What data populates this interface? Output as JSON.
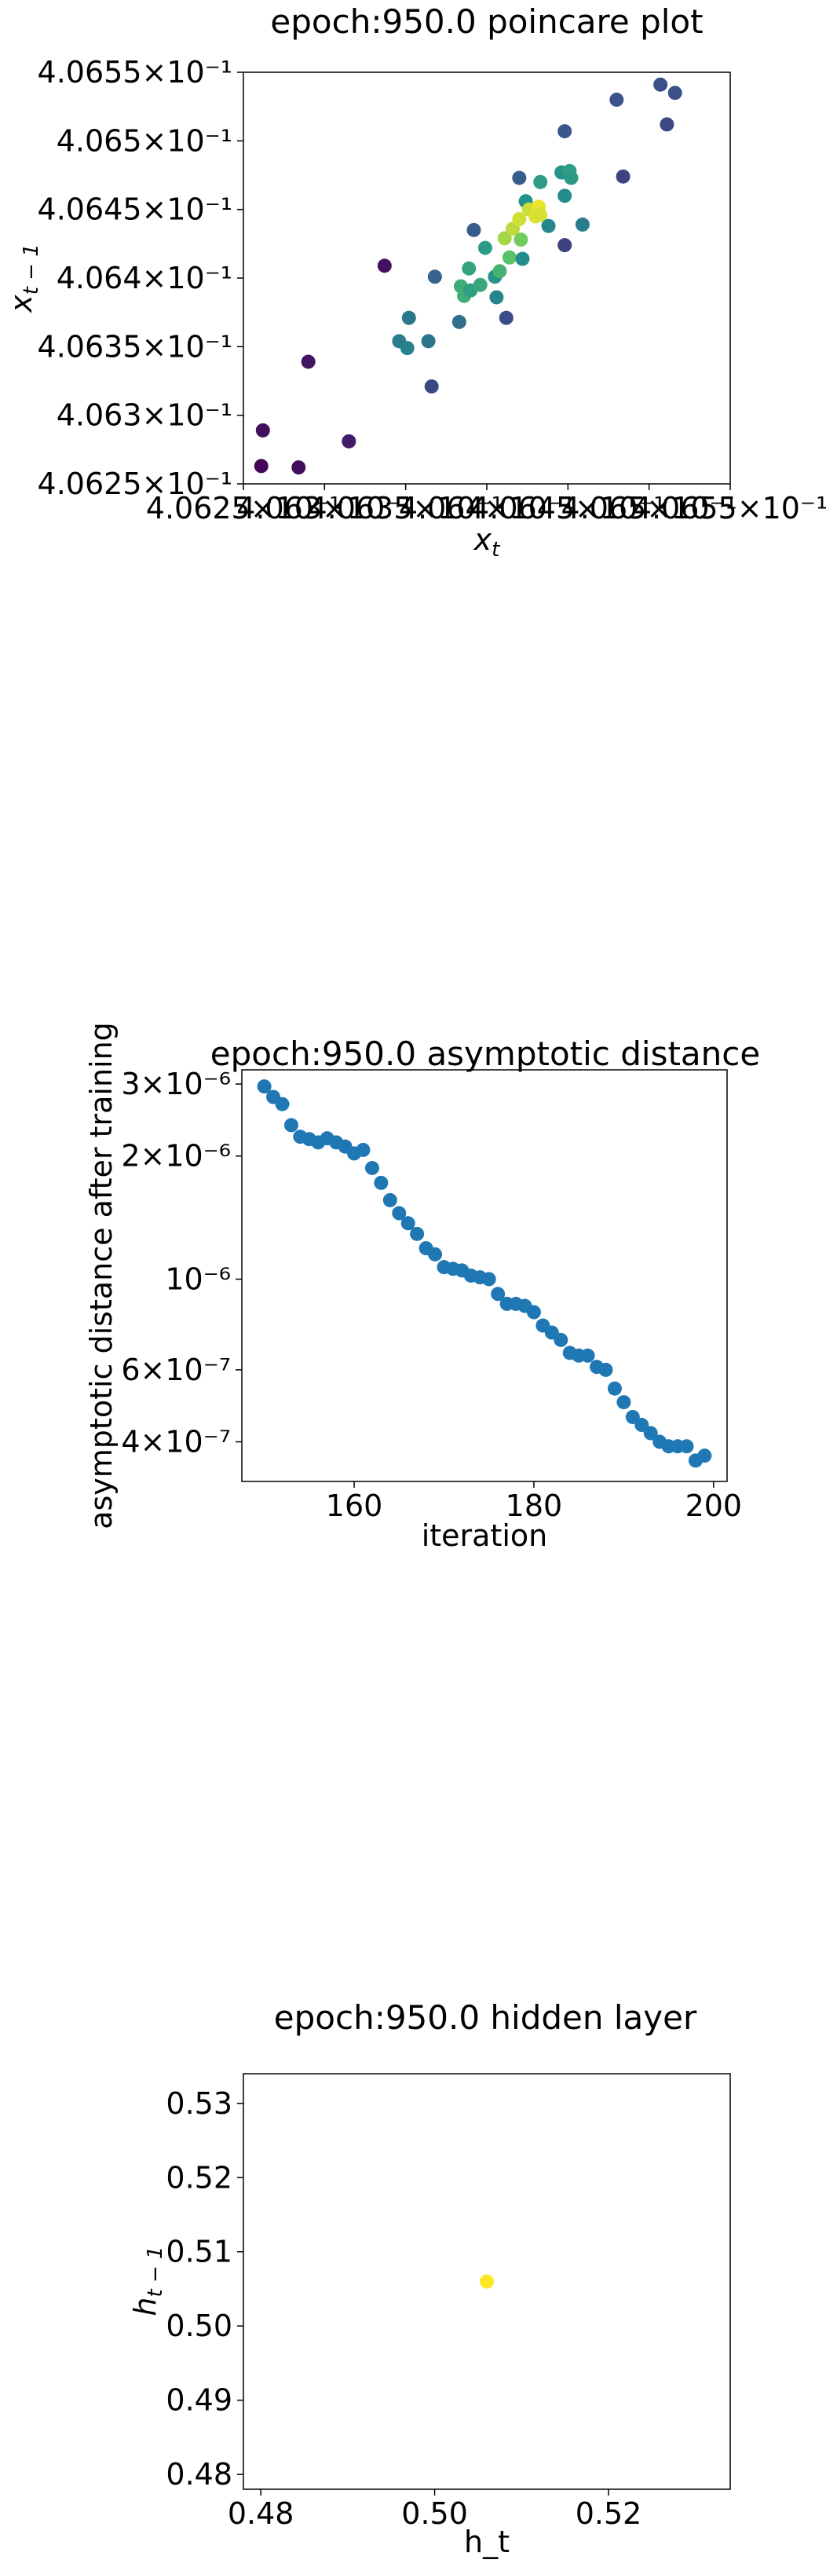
{
  "chart_data": [
    {
      "type": "scatter",
      "title": "epoch:950.0 poincare plot",
      "xlabel": "x_t",
      "ylabel": "x_{t-1}",
      "xlim": [
        0.40625,
        0.40655
      ],
      "ylim": [
        0.40625,
        0.40655
      ],
      "x_tick_labels": [
        "4.0625×10⁻¹",
        "4.063×10⁻¹",
        "4.0635×10⁻¹",
        "4.064×10⁻¹",
        "4.0645×10⁻¹",
        "4.065×10⁻¹",
        "4.0655×10⁻¹"
      ],
      "y_tick_labels": [
        "4.0625×10⁻¹",
        "4.063×10⁻¹",
        "4.0635×10⁻¹",
        "4.064×10⁻¹",
        "4.0645×10⁻¹",
        "4.065×10⁻¹",
        "4.0655×10⁻¹"
      ],
      "x_ticks": [
        0.40625,
        0.4063,
        0.40635,
        0.4064,
        0.40645,
        0.4065,
        0.40655
      ],
      "y_ticks": [
        0.40625,
        0.4063,
        0.40635,
        0.4064,
        0.40645,
        0.4065,
        0.40655
      ],
      "colormap": "viridis",
      "points": [
        {
          "x": 0.406261,
          "y": 0.406263,
          "c": 0.02
        },
        {
          "x": 0.406262,
          "y": 0.406289,
          "c": 0.04
        },
        {
          "x": 0.406284,
          "y": 0.406262,
          "c": 0.03
        },
        {
          "x": 0.40629,
          "y": 0.406339,
          "c": 0.06
        },
        {
          "x": 0.406315,
          "y": 0.406281,
          "c": 0.08
        },
        {
          "x": 0.406337,
          "y": 0.406409,
          "c": 0.05
        },
        {
          "x": 0.406346,
          "y": 0.406354,
          "c": 0.42
        },
        {
          "x": 0.406351,
          "y": 0.406349,
          "c": 0.44
        },
        {
          "x": 0.406352,
          "y": 0.406371,
          "c": 0.4
        },
        {
          "x": 0.406364,
          "y": 0.406354,
          "c": 0.39
        },
        {
          "x": 0.406366,
          "y": 0.406321,
          "c": 0.22
        },
        {
          "x": 0.406368,
          "y": 0.406401,
          "c": 0.32
        },
        {
          "x": 0.406383,
          "y": 0.406368,
          "c": 0.36
        },
        {
          "x": 0.406384,
          "y": 0.406394,
          "c": 0.62
        },
        {
          "x": 0.406386,
          "y": 0.406387,
          "c": 0.63
        },
        {
          "x": 0.406389,
          "y": 0.406407,
          "c": 0.58
        },
        {
          "x": 0.40639,
          "y": 0.406391,
          "c": 0.56
        },
        {
          "x": 0.406392,
          "y": 0.406435,
          "c": 0.29
        },
        {
          "x": 0.406396,
          "y": 0.406395,
          "c": 0.6
        },
        {
          "x": 0.406399,
          "y": 0.406422,
          "c": 0.55
        },
        {
          "x": 0.406405,
          "y": 0.406401,
          "c": 0.52
        },
        {
          "x": 0.406406,
          "y": 0.406386,
          "c": 0.45
        },
        {
          "x": 0.406408,
          "y": 0.406405,
          "c": 0.65
        },
        {
          "x": 0.406411,
          "y": 0.406429,
          "c": 0.86
        },
        {
          "x": 0.406412,
          "y": 0.406371,
          "c": 0.23
        },
        {
          "x": 0.406414,
          "y": 0.406415,
          "c": 0.72
        },
        {
          "x": 0.406416,
          "y": 0.406436,
          "c": 0.9
        },
        {
          "x": 0.40642,
          "y": 0.406473,
          "c": 0.3
        },
        {
          "x": 0.40642,
          "y": 0.406443,
          "c": 0.93
        },
        {
          "x": 0.406421,
          "y": 0.406428,
          "c": 0.78
        },
        {
          "x": 0.406422,
          "y": 0.406414,
          "c": 0.48
        },
        {
          "x": 0.406424,
          "y": 0.406456,
          "c": 0.5
        },
        {
          "x": 0.406426,
          "y": 0.40645,
          "c": 0.92
        },
        {
          "x": 0.40643,
          "y": 0.406445,
          "c": 0.95
        },
        {
          "x": 0.406432,
          "y": 0.406452,
          "c": 0.97
        },
        {
          "x": 0.406433,
          "y": 0.406446,
          "c": 0.94
        },
        {
          "x": 0.406433,
          "y": 0.40647,
          "c": 0.55
        },
        {
          "x": 0.406438,
          "y": 0.406438,
          "c": 0.46
        },
        {
          "x": 0.406446,
          "y": 0.406477,
          "c": 0.52
        },
        {
          "x": 0.406448,
          "y": 0.40646,
          "c": 0.48
        },
        {
          "x": 0.406448,
          "y": 0.406424,
          "c": 0.2
        },
        {
          "x": 0.406448,
          "y": 0.406507,
          "c": 0.27
        },
        {
          "x": 0.406451,
          "y": 0.406478,
          "c": 0.56
        },
        {
          "x": 0.406452,
          "y": 0.406473,
          "c": 0.54
        },
        {
          "x": 0.406459,
          "y": 0.406439,
          "c": 0.42
        },
        {
          "x": 0.40648,
          "y": 0.40653,
          "c": 0.25
        },
        {
          "x": 0.406484,
          "y": 0.406474,
          "c": 0.21
        },
        {
          "x": 0.406507,
          "y": 0.406541,
          "c": 0.24
        },
        {
          "x": 0.406511,
          "y": 0.406512,
          "c": 0.22
        },
        {
          "x": 0.406516,
          "y": 0.406535,
          "c": 0.24
        }
      ]
    },
    {
      "type": "scatter",
      "title": "epoch:950.0 asymptotic distance",
      "xlabel": "iteration",
      "ylabel": "asymptotic distance after training",
      "yscale": "log",
      "xlim": [
        147.5,
        201.5
      ],
      "ylim": [
        3.2e-07,
        3.25e-06
      ],
      "x_ticks": [
        160,
        180,
        200
      ],
      "x_tick_labels": [
        "160",
        "180",
        "200"
      ],
      "y_ticks": [
        4e-07,
        6e-07,
        1e-06,
        2e-06,
        3e-06
      ],
      "y_tick_labels": [
        "4×10⁻⁷",
        "6×10⁻⁷",
        "10⁻⁶",
        "2×10⁻⁶",
        "3×10⁻⁶"
      ],
      "color": "#1f77b4",
      "x": [
        150,
        151,
        152,
        153,
        154,
        155,
        156,
        157,
        158,
        159,
        160,
        161,
        162,
        163,
        164,
        165,
        166,
        167,
        168,
        169,
        170,
        171,
        172,
        173,
        174,
        175,
        176,
        177,
        178,
        179,
        180,
        181,
        182,
        183,
        184,
        185,
        186,
        187,
        188,
        189,
        190,
        191,
        192,
        193,
        194,
        195,
        196,
        197,
        198,
        199
      ],
      "y": [
        2.96e-06,
        2.79e-06,
        2.68e-06,
        2.38e-06,
        2.23e-06,
        2.2e-06,
        2.16e-06,
        2.21e-06,
        2.16e-06,
        2.11e-06,
        2.03e-06,
        2.07e-06,
        1.87e-06,
        1.72e-06,
        1.56e-06,
        1.45e-06,
        1.37e-06,
        1.29e-06,
        1.19e-06,
        1.15e-06,
        1.07e-06,
        1.06e-06,
        1.05e-06,
        1.02e-06,
        1.01e-06,
        1e-06,
        9.2e-07,
        8.7e-07,
        8.7e-07,
        8.6e-07,
        8.3e-07,
        7.7e-07,
        7.4e-07,
        7.1e-07,
        6.6e-07,
        6.5e-07,
        6.5e-07,
        6.1e-07,
        6e-07,
        5.4e-07,
        5e-07,
        4.6e-07,
        4.4e-07,
        4.2e-07,
        4e-07,
        3.9e-07,
        3.9e-07,
        3.9e-07,
        3.6e-07,
        3.7e-07
      ]
    },
    {
      "type": "scatter",
      "title": "epoch:950.0 hidden layer",
      "xlabel": "h_t",
      "ylabel": "h_{t-1}",
      "xlim": [
        0.478,
        0.534
      ],
      "ylim": [
        0.478,
        0.534
      ],
      "x_ticks": [
        0.48,
        0.5,
        0.52
      ],
      "x_tick_labels": [
        "0.48",
        "0.50",
        "0.52"
      ],
      "y_ticks": [
        0.48,
        0.49,
        0.5,
        0.51,
        0.52,
        0.53
      ],
      "y_tick_labels": [
        "0.48",
        "0.49",
        "0.50",
        "0.51",
        "0.52",
        "0.53"
      ],
      "colormap": "viridis",
      "points": [
        {
          "x": 0.506,
          "y": 0.506,
          "c": 1.0
        }
      ]
    }
  ]
}
